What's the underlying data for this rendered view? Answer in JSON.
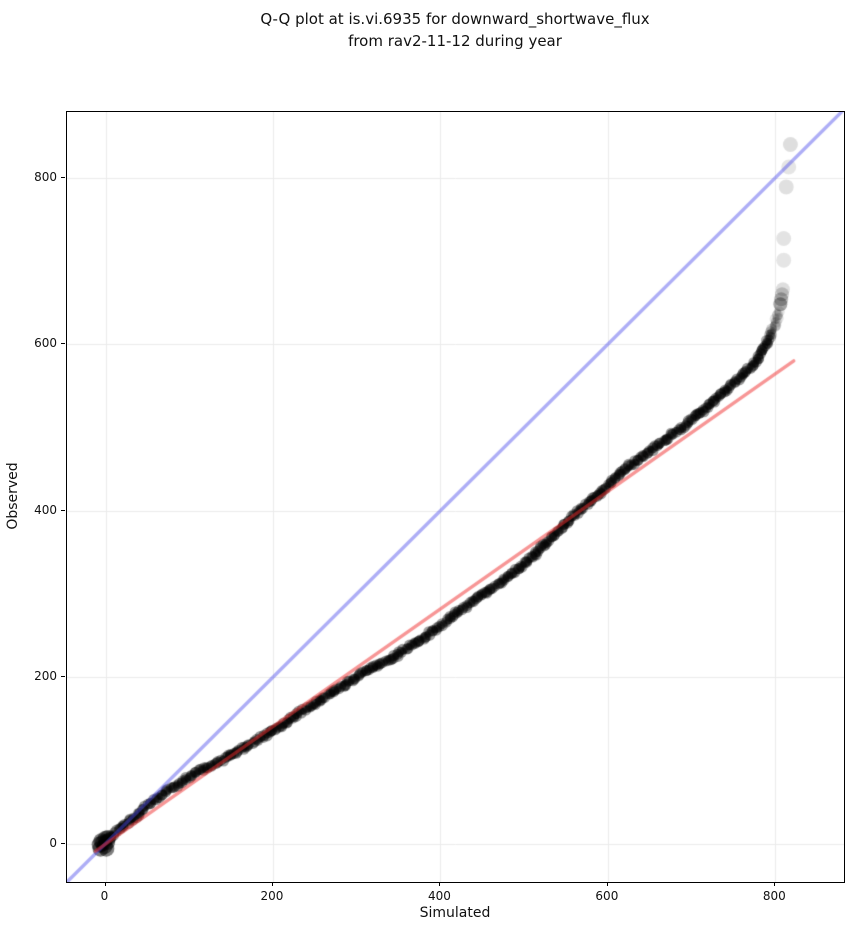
{
  "figure": {
    "title_line1": "Q-Q plot at is.vi.6935 for downward_shortwave_flux",
    "title_line2": "from rav2-11-12 during year"
  },
  "chart_data": {
    "type": "scatter",
    "subtype": "qq-plot",
    "title": "Q-Q plot at is.vi.6935 for downward_shortwave_flux from rav2-11-12 during year",
    "xlabel": "Simulated",
    "ylabel": "Observed",
    "xlim": [
      -46,
      882
    ],
    "ylim": [
      -46,
      879
    ],
    "x_ticks": [
      0,
      200,
      400,
      600,
      800
    ],
    "y_ticks": [
      0,
      200,
      400,
      600,
      800
    ],
    "grid": true,
    "legend": "none",
    "colors": {
      "point": "#000000",
      "reference_line": "#4b4beb",
      "fit_line": "#f02d2d",
      "grid": "#ebebeb",
      "spine": "#000000",
      "text": "#111111"
    },
    "reference_line": {
      "name": "identity y=x",
      "from": [
        -46,
        -46
      ],
      "to": [
        882,
        882
      ],
      "alpha": 0.45,
      "width": 3.4
    },
    "fit_line": {
      "name": "quantile fit",
      "from": [
        -12,
        -9
      ],
      "to": [
        822,
        580
      ],
      "alpha": 0.5,
      "width": 3.4
    },
    "qq_points": [
      [
        -6,
        -4
      ],
      [
        6,
        8
      ],
      [
        18,
        18
      ],
      [
        30,
        28
      ],
      [
        42,
        38
      ],
      [
        54,
        50
      ],
      [
        66,
        58
      ],
      [
        78,
        66
      ],
      [
        90,
        74
      ],
      [
        102,
        82
      ],
      [
        114,
        88
      ],
      [
        126,
        93
      ],
      [
        140,
        101
      ],
      [
        155,
        110
      ],
      [
        170,
        119
      ],
      [
        185,
        127
      ],
      [
        200,
        136
      ],
      [
        213,
        144
      ],
      [
        230,
        156
      ],
      [
        250,
        168
      ],
      [
        270,
        181
      ],
      [
        290,
        194
      ],
      [
        310,
        206
      ],
      [
        330,
        217
      ],
      [
        350,
        228
      ],
      [
        370,
        241
      ],
      [
        390,
        255
      ],
      [
        410,
        270
      ],
      [
        430,
        285
      ],
      [
        450,
        299
      ],
      [
        470,
        313
      ],
      [
        490,
        328
      ],
      [
        510,
        345
      ],
      [
        530,
        365
      ],
      [
        553,
        388
      ],
      [
        575,
        408
      ],
      [
        600,
        430
      ],
      [
        617,
        448
      ],
      [
        635,
        460
      ],
      [
        655,
        475
      ],
      [
        675,
        490
      ],
      [
        695,
        505
      ],
      [
        715,
        522
      ],
      [
        732,
        537
      ],
      [
        748,
        551
      ],
      [
        760,
        562
      ],
      [
        770,
        572
      ],
      [
        778,
        582
      ],
      [
        784,
        591
      ],
      [
        789,
        600
      ],
      [
        793,
        609
      ],
      [
        797,
        618
      ],
      [
        800,
        626
      ],
      [
        803,
        634
      ],
      [
        805,
        641
      ]
    ],
    "fade_points": [
      [
        806,
        648,
        0.35
      ],
      [
        807,
        654,
        0.25
      ],
      [
        808,
        660,
        0.18
      ],
      [
        809,
        666,
        0.13
      ]
    ],
    "outlier_points": [
      [
        810,
        701,
        0.1
      ],
      [
        810,
        727,
        0.11
      ],
      [
        813,
        789,
        0.12
      ],
      [
        816,
        813,
        0.1
      ],
      [
        818,
        840,
        0.13
      ]
    ],
    "start_cluster": [
      [
        -6,
        -6
      ],
      [
        -3,
        1
      ],
      [
        0,
        6
      ],
      [
        -5,
        3
      ],
      [
        -1,
        -3
      ],
      [
        2,
        2
      ],
      [
        -7,
        -1
      ],
      [
        1,
        -6
      ],
      [
        3,
        7
      ]
    ],
    "point_radius_px": 5.5,
    "point_alpha": 0.38
  }
}
